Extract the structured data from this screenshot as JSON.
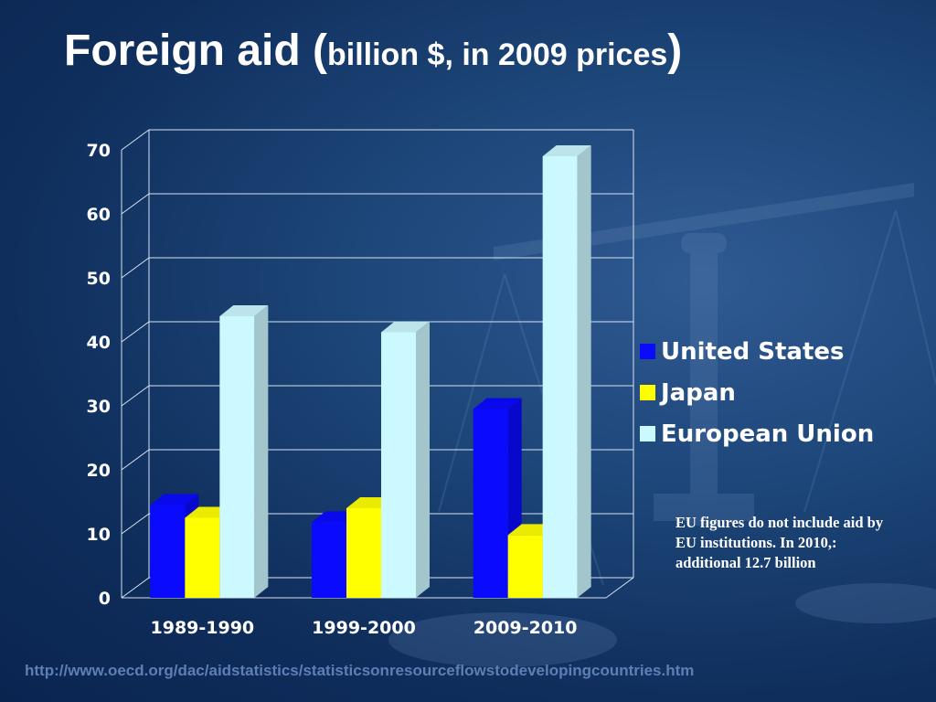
{
  "title": {
    "main": "Foreign aid (",
    "sub": "billion $, in 2009 prices",
    "close": ")"
  },
  "chart_data": {
    "type": "bar",
    "categories": [
      "1989-1990",
      "1999-2000",
      "2009-2010"
    ],
    "series": [
      {
        "name": "United States",
        "values": [
          14.5,
          11.8,
          29.5
        ],
        "color": "#0a0aff"
      },
      {
        "name": "Japan",
        "values": [
          12.5,
          14,
          9.8
        ],
        "color": "#ffff00"
      },
      {
        "name": "European Union",
        "values": [
          44,
          41.5,
          69
        ],
        "color": "#ccf8ff"
      }
    ],
    "y_ticks": [
      "0",
      "10",
      "20",
      "30",
      "40",
      "50",
      "60",
      "70"
    ],
    "ylim": [
      0,
      70
    ],
    "grid": true,
    "legend_position": "right",
    "three_d": true
  },
  "note": "EU figures do not include aid by EU institutions. In 2010,: additional 12.7 billion",
  "source_url": "http://www.oecd.org/dac/aidstatistics/statisticsonresourceflowstodevelopingcountries.htm"
}
